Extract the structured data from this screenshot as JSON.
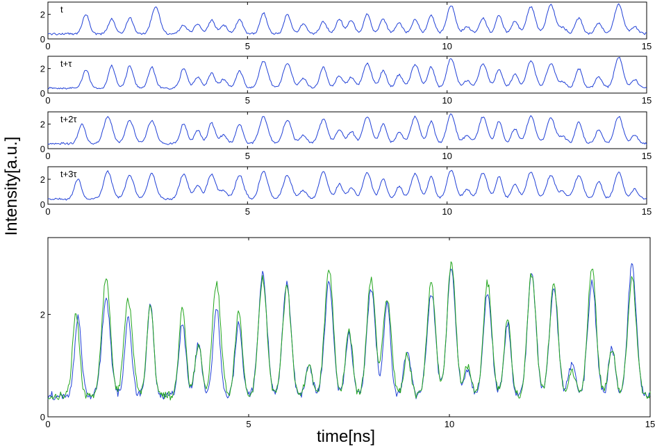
{
  "chart_data": [
    {
      "type": "line",
      "panel_label": "t",
      "xlim": [
        0,
        15
      ],
      "ylim": [
        0,
        3
      ],
      "xticks": [
        0,
        5,
        10,
        15
      ],
      "yticks": [
        0,
        2
      ],
      "series": [
        {
          "color": "#1f3fd6",
          "peaks": [
            [
              0.95,
              2.0
            ],
            [
              1.6,
              1.6
            ],
            [
              2.05,
              1.7
            ],
            [
              2.7,
              2.6
            ],
            [
              3.4,
              1.1
            ],
            [
              3.75,
              1.2
            ],
            [
              4.1,
              1.5
            ],
            [
              4.4,
              1.1
            ],
            [
              4.8,
              1.6
            ],
            [
              5.4,
              2.1
            ],
            [
              6.0,
              2.0
            ],
            [
              6.4,
              1.2
            ],
            [
              6.9,
              1.4
            ],
            [
              7.3,
              1.6
            ],
            [
              7.6,
              1.5
            ],
            [
              8.0,
              2.0
            ],
            [
              8.4,
              1.6
            ],
            [
              8.8,
              1.3
            ],
            [
              9.2,
              1.6
            ],
            [
              9.6,
              1.9
            ],
            [
              10.1,
              2.7
            ],
            [
              10.5,
              1.0
            ],
            [
              10.9,
              1.7
            ],
            [
              11.3,
              1.9
            ],
            [
              11.7,
              1.4
            ],
            [
              12.1,
              2.6
            ],
            [
              12.6,
              2.8
            ],
            [
              12.9,
              0.9
            ],
            [
              13.3,
              1.7
            ],
            [
              13.8,
              1.3
            ],
            [
              14.3,
              2.8
            ],
            [
              14.7,
              1.0
            ]
          ]
        }
      ]
    },
    {
      "type": "line",
      "panel_label": "t+τ",
      "xlim": [
        0,
        15
      ],
      "ylim": [
        0,
        3
      ],
      "xticks": [
        0,
        5,
        10,
        15
      ],
      "yticks": [
        0,
        2
      ],
      "series": [
        {
          "color": "#1f3fd6",
          "peaks": [
            [
              0.95,
              1.9
            ],
            [
              1.6,
              2.2
            ],
            [
              2.05,
              2.2
            ],
            [
              2.6,
              2.1
            ],
            [
              3.4,
              2.0
            ],
            [
              3.75,
              1.3
            ],
            [
              4.1,
              1.6
            ],
            [
              4.4,
              1.1
            ],
            [
              4.8,
              1.8
            ],
            [
              5.4,
              2.6
            ],
            [
              6.0,
              2.4
            ],
            [
              6.4,
              1.2
            ],
            [
              6.9,
              2.1
            ],
            [
              7.3,
              1.4
            ],
            [
              7.6,
              1.3
            ],
            [
              8.0,
              2.4
            ],
            [
              8.4,
              1.8
            ],
            [
              8.8,
              1.5
            ],
            [
              9.2,
              2.3
            ],
            [
              9.6,
              2.1
            ],
            [
              10.1,
              2.8
            ],
            [
              10.5,
              1.0
            ],
            [
              10.9,
              2.4
            ],
            [
              11.3,
              1.9
            ],
            [
              11.7,
              1.5
            ],
            [
              12.1,
              2.6
            ],
            [
              12.6,
              2.4
            ],
            [
              12.9,
              0.9
            ],
            [
              13.3,
              2.0
            ],
            [
              13.8,
              1.3
            ],
            [
              14.3,
              2.9
            ],
            [
              14.7,
              1.1
            ]
          ]
        }
      ]
    },
    {
      "type": "line",
      "panel_label": "t+2τ",
      "xlim": [
        0,
        15
      ],
      "ylim": [
        0,
        3
      ],
      "xticks": [
        0,
        5,
        10,
        15
      ],
      "yticks": [
        0,
        2
      ],
      "series": [
        {
          "color": "#1f3fd6",
          "peaks": [
            [
              0.85,
              2.0
            ],
            [
              1.5,
              2.6
            ],
            [
              2.05,
              2.3
            ],
            [
              2.6,
              2.3
            ],
            [
              3.4,
              2.0
            ],
            [
              3.75,
              1.5
            ],
            [
              4.1,
              2.1
            ],
            [
              4.4,
              1.1
            ],
            [
              4.8,
              2.0
            ],
            [
              5.4,
              2.6
            ],
            [
              6.0,
              2.3
            ],
            [
              6.4,
              1.1
            ],
            [
              6.9,
              2.4
            ],
            [
              7.3,
              1.6
            ],
            [
              7.6,
              1.4
            ],
            [
              8.0,
              2.6
            ],
            [
              8.4,
              2.0
            ],
            [
              8.8,
              1.3
            ],
            [
              9.2,
              2.6
            ],
            [
              9.6,
              2.2
            ],
            [
              10.1,
              2.8
            ],
            [
              10.5,
              1.1
            ],
            [
              10.9,
              2.6
            ],
            [
              11.3,
              2.2
            ],
            [
              11.7,
              1.6
            ],
            [
              12.1,
              2.6
            ],
            [
              12.6,
              2.5
            ],
            [
              12.9,
              1.0
            ],
            [
              13.3,
              2.2
            ],
            [
              13.8,
              1.5
            ],
            [
              14.3,
              2.6
            ],
            [
              14.7,
              1.1
            ]
          ]
        }
      ]
    },
    {
      "type": "line",
      "panel_label": "t+3τ",
      "xlim": [
        0,
        15
      ],
      "ylim": [
        0,
        3
      ],
      "xticks": [
        0,
        5,
        10,
        15
      ],
      "yticks": [
        0,
        2
      ],
      "series": [
        {
          "color": "#1f3fd6",
          "peaks": [
            [
              0.75,
              2.0
            ],
            [
              1.5,
              2.6
            ],
            [
              2.05,
              2.3
            ],
            [
              2.6,
              2.4
            ],
            [
              3.4,
              2.4
            ],
            [
              3.75,
              1.5
            ],
            [
              4.1,
              2.4
            ],
            [
              4.4,
              1.1
            ],
            [
              4.8,
              2.3
            ],
            [
              5.4,
              2.6
            ],
            [
              6.0,
              2.3
            ],
            [
              6.4,
              1.1
            ],
            [
              6.9,
              2.6
            ],
            [
              7.3,
              1.6
            ],
            [
              7.6,
              1.3
            ],
            [
              8.0,
              2.5
            ],
            [
              8.4,
              2.0
            ],
            [
              8.8,
              1.4
            ],
            [
              9.2,
              2.4
            ],
            [
              9.6,
              2.2
            ],
            [
              10.1,
              2.7
            ],
            [
              10.5,
              1.2
            ],
            [
              10.9,
              2.5
            ],
            [
              11.3,
              2.2
            ],
            [
              11.7,
              1.6
            ],
            [
              12.1,
              2.6
            ],
            [
              12.6,
              2.3
            ],
            [
              12.9,
              1.0
            ],
            [
              13.3,
              2.3
            ],
            [
              13.8,
              1.8
            ],
            [
              14.3,
              2.5
            ],
            [
              14.7,
              1.2
            ]
          ]
        }
      ]
    },
    {
      "type": "line",
      "xlim": [
        0,
        15
      ],
      "ylim": [
        0,
        3.5
      ],
      "xticks": [
        0,
        5,
        10,
        15
      ],
      "yticks": [
        0,
        2
      ],
      "xlabel": "time[ns]",
      "series": [
        {
          "color": "#1f3fd6",
          "peaks": [
            [
              0.75,
              1.9
            ],
            [
              1.45,
              2.3
            ],
            [
              2.0,
              1.9
            ],
            [
              2.55,
              2.2
            ],
            [
              3.35,
              1.8
            ],
            [
              3.75,
              1.4
            ],
            [
              4.2,
              2.1
            ],
            [
              4.75,
              1.8
            ],
            [
              5.35,
              2.8
            ],
            [
              5.95,
              2.6
            ],
            [
              6.5,
              1.0
            ],
            [
              7.0,
              2.6
            ],
            [
              7.5,
              1.6
            ],
            [
              8.05,
              2.5
            ],
            [
              8.45,
              2.2
            ],
            [
              8.95,
              1.3
            ],
            [
              9.55,
              2.4
            ],
            [
              10.05,
              2.9
            ],
            [
              10.45,
              0.9
            ],
            [
              10.95,
              2.4
            ],
            [
              11.45,
              1.8
            ],
            [
              12.05,
              2.8
            ],
            [
              12.6,
              2.5
            ],
            [
              13.05,
              1.0
            ],
            [
              13.55,
              2.6
            ],
            [
              14.05,
              1.3
            ],
            [
              14.55,
              3.0
            ]
          ]
        },
        {
          "color": "#22a51c",
          "peaks": [
            [
              0.7,
              2.0
            ],
            [
              1.45,
              2.7
            ],
            [
              2.0,
              2.3
            ],
            [
              2.55,
              2.2
            ],
            [
              3.35,
              2.1
            ],
            [
              3.75,
              1.4
            ],
            [
              4.2,
              2.6
            ],
            [
              4.75,
              2.1
            ],
            [
              5.35,
              2.7
            ],
            [
              5.95,
              2.5
            ],
            [
              6.5,
              1.0
            ],
            [
              7.0,
              2.9
            ],
            [
              7.5,
              1.7
            ],
            [
              8.05,
              2.7
            ],
            [
              8.45,
              2.3
            ],
            [
              8.95,
              1.2
            ],
            [
              9.55,
              2.6
            ],
            [
              10.05,
              3.0
            ],
            [
              10.45,
              1.0
            ],
            [
              10.95,
              2.6
            ],
            [
              11.45,
              1.9
            ],
            [
              12.05,
              2.8
            ],
            [
              12.6,
              2.6
            ],
            [
              13.05,
              0.9
            ],
            [
              13.55,
              2.9
            ],
            [
              14.05,
              1.3
            ],
            [
              14.55,
              2.7
            ]
          ]
        }
      ]
    }
  ],
  "labels": {
    "ylabel": "Intensity[a.u.]",
    "xlabel": "time[ns]"
  }
}
